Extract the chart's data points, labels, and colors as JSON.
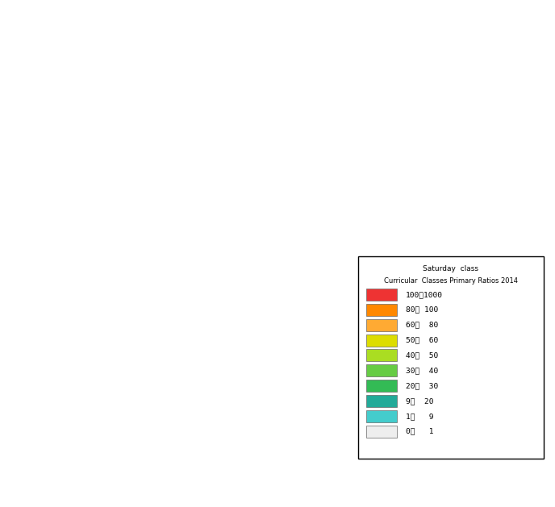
{
  "legend_title_line1": "Saturday  class",
  "legend_title_line2": "Curricular  Classes Primary Ratios 2014",
  "legend_labels": [
    "100～1000",
    "80～ 100",
    "60～  80",
    "50～  60",
    "40～  50",
    "30～  40",
    "20～  30",
    "9～  20",
    "1～   9",
    "0～   1"
  ],
  "legend_colors": [
    "#EE3333",
    "#FF8800",
    "#FFAA33",
    "#DDDD00",
    "#AADD22",
    "#66CC44",
    "#33BB55",
    "#22AA99",
    "#44CCCC",
    "#EEEEEE"
  ],
  "prefecture_colors": {
    "Hokkaido": "#AADD22",
    "Aomori": "#FFFFFF",
    "Iwate": "#FFFFFF",
    "Miyagi": "#33BB55",
    "Akita": "#FFFFFF",
    "Yamagata": "#FFFFFF",
    "Fukushima": "#FFFFFF",
    "Ibaraki": "#FFFFFF",
    "Tochigi": "#FFFFFF",
    "Gunma": "#FFFFFF",
    "Saitama": "#33BB55",
    "Chiba": "#FFFFFF",
    "Tokyo": "#22AA99",
    "Kanagawa": "#33BB55",
    "Niigata": "#FFFFFF",
    "Toyama": "#FFFFFF",
    "Ishikawa": "#FFFFFF",
    "Fukui": "#FFFFFF",
    "Yamanashi": "#FFFFFF",
    "Nagano": "#DDDD00",
    "Gifu": "#AADD22",
    "Shizuoka": "#FF8800",
    "Aichi": "#FFFFFF",
    "Mie": "#22AA99",
    "Shiga": "#EE3333",
    "Kyoto": "#EE3333",
    "Osaka": "#EE3333",
    "Hyogo": "#EE3333",
    "Nara": "#FFFFFF",
    "Wakayama": "#FFFFFF",
    "Tottori": "#FFFFFF",
    "Shimane": "#FFFFFF",
    "Okayama": "#EE3333",
    "Hiroshima": "#EE3333",
    "Yamaguchi": "#FF8800",
    "Tokushima": "#FFFFFF",
    "Kagawa": "#EE3333",
    "Ehime": "#EE3333",
    "Kochi": "#FFFFFF",
    "Fukuoka": "#EE3333",
    "Saga": "#FFFFFF",
    "Nagasaki": "#FFFFFF",
    "Kumamoto": "#EE3333",
    "Oita": "#FFFFFF",
    "Miyazaki": "#FFFFFF",
    "Kagoshima": "#44CCCC",
    "Okinawa": "#888888"
  },
  "map_extent": [
    122,
    149,
    24,
    46
  ],
  "background_color": "#FFFFFF",
  "border_color": "#888888",
  "fig_width": 6.88,
  "fig_height": 6.29,
  "dpi": 100
}
